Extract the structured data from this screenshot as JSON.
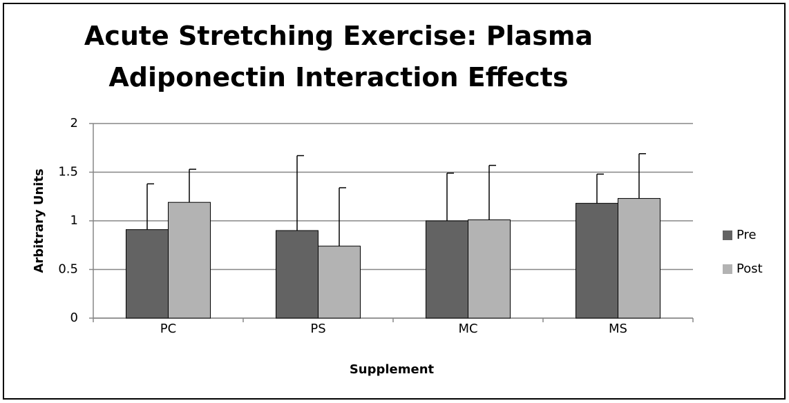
{
  "chart_data": {
    "type": "bar",
    "title": "Acute Stretching Exercise: Plasma Adiponectin Interaction Effects",
    "x_label": "Supplement",
    "y_label": "Arbitrary Units",
    "categories": [
      "PC",
      "PS",
      "MC",
      "MS"
    ],
    "series": [
      {
        "name": "Pre",
        "color": "#636363",
        "values": [
          0.91,
          0.9,
          1.0,
          1.18
        ],
        "errors": [
          0.47,
          0.77,
          0.49,
          0.3
        ]
      },
      {
        "name": "Post",
        "color": "#b3b3b3",
        "values": [
          1.19,
          0.74,
          1.01,
          1.23
        ],
        "errors": [
          0.34,
          0.6,
          0.56,
          0.46
        ]
      }
    ],
    "ylim": [
      0,
      2
    ],
    "yticks": [
      0,
      0.5,
      1,
      1.5,
      2
    ],
    "grid": true,
    "legend": "right"
  }
}
